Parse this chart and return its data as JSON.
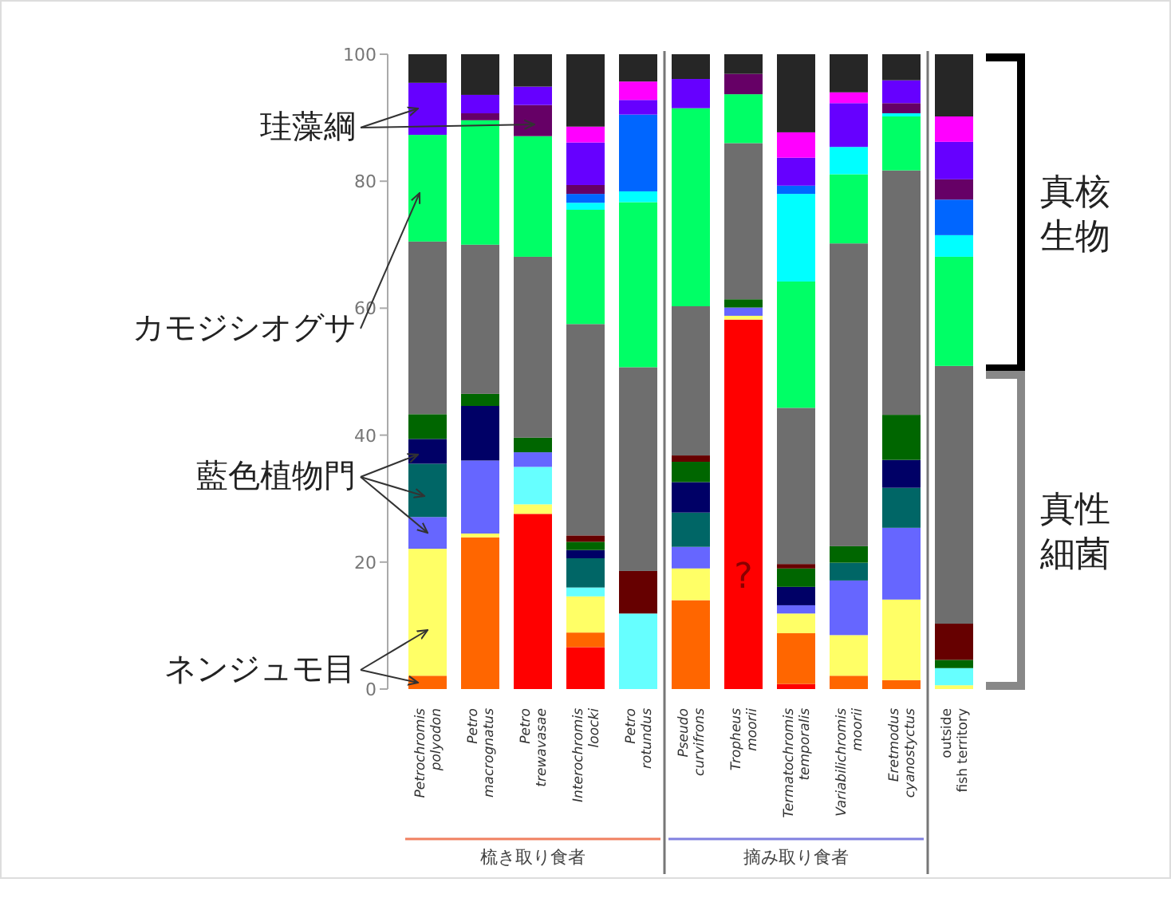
{
  "chart_data": {
    "type": "bar",
    "stacked": true,
    "categories": [
      "Petrochromis polyodon",
      "Petro macrognatus",
      "Petro trewavasae",
      "Interochromis loocki",
      "Petro rotundus",
      "Pseudo curvifrons",
      "Tropheus moorii",
      "Termatochromis temporalis",
      "Variabilichromis moorii",
      "Eretmodus cyanostyctus",
      "outside fish territory"
    ],
    "ylim": [
      0,
      100
    ],
    "yticks": [
      0,
      20,
      40,
      60,
      80,
      100
    ],
    "grid": false,
    "series": [
      {
        "color": "#ff0000",
        "values": [
          0,
          0,
          27.6,
          6.6,
          0,
          0,
          58.2,
          0.8,
          0,
          0,
          0
        ]
      },
      {
        "color": "#ff6600",
        "values": [
          2.1,
          23.9,
          0,
          2.3,
          0,
          14.0,
          0,
          8.0,
          2.1,
          1.4,
          0
        ]
      },
      {
        "color": "#ffff66",
        "values": [
          20,
          0.6,
          1.5,
          5.7,
          0,
          5.0,
          0.6,
          3.1,
          6.4,
          12.7,
          0.6
        ]
      },
      {
        "color": "#66ffff",
        "values": [
          0,
          0,
          5.9,
          1.4,
          11.9,
          0,
          0,
          0,
          0,
          0,
          2.7
        ]
      },
      {
        "color": "#6666ff",
        "values": [
          5,
          11.5,
          2.3,
          0,
          0,
          3.4,
          1.3,
          1.3,
          8.6,
          11.3,
          0
        ]
      },
      {
        "color": "#006666",
        "values": [
          8.4,
          0,
          0,
          4.6,
          0,
          5.4,
          0,
          0,
          2.8,
          6.3,
          0
        ]
      },
      {
        "color": "#000066",
        "values": [
          3.9,
          8.6,
          0,
          1.3,
          0,
          4.8,
          0,
          2.9,
          0,
          4.4,
          0
        ]
      },
      {
        "color": "#006600",
        "values": [
          3.9,
          1.9,
          2.3,
          1.3,
          0,
          3.2,
          1.3,
          2.9,
          2.6,
          7.1,
          1.3
        ]
      },
      {
        "color": "#660000",
        "values": [
          0,
          0,
          0,
          1.0,
          6.7,
          1.0,
          0,
          0.7,
          0,
          0,
          5.7
        ]
      },
      {
        "color": "#6e6e6e",
        "values": [
          27.2,
          23.5,
          28.5,
          33.3,
          32.1,
          23.5,
          24.6,
          24.6,
          47.7,
          38.5,
          40.6
        ]
      },
      {
        "color": "#00ff66",
        "values": [
          16.8,
          19.6,
          19.0,
          18.0,
          26.0,
          31.2,
          7.7,
          19.9,
          10.9,
          8.5,
          17.2
        ]
      },
      {
        "color": "#00ffff",
        "values": [
          0,
          0,
          0,
          1.1,
          1.7,
          0,
          0,
          13.8,
          4.3,
          0.5,
          3.4
        ]
      },
      {
        "color": "#0066ff",
        "values": [
          0,
          0,
          0,
          1.4,
          12.1,
          0,
          0,
          1.3,
          0,
          0,
          5.6
        ]
      },
      {
        "color": "#660066",
        "values": [
          0,
          1.1,
          4.9,
          1.4,
          0,
          0,
          3.2,
          0,
          0,
          1.6,
          3.2
        ]
      },
      {
        "color": "#6600ff",
        "values": [
          8.2,
          2.9,
          2.9,
          6.7,
          2.3,
          4.6,
          0,
          4.4,
          6.9,
          3.6,
          5.9
        ]
      },
      {
        "color": "#ff00ff",
        "values": [
          0,
          0,
          0,
          2.5,
          2.9,
          0,
          0,
          4.0,
          1.7,
          0,
          4.0
        ]
      },
      {
        "color": "#262626",
        "values": [
          4.5,
          6.4,
          5.1,
          11.4,
          4.3,
          3.9,
          3.1,
          12.3,
          6.0,
          4.1,
          9.8
        ]
      }
    ],
    "annotations": [
      "珪藻綱",
      "カモジシオグサ",
      "藍色植物門",
      {
        "text": "ネンジュモ目",
        "x": "Petrochromis polyodon",
        "y": 1
      },
      "真核生物",
      "真性細菌",
      "梳き取り食者",
      "摘み取り食者",
      "?"
    ]
  }
}
